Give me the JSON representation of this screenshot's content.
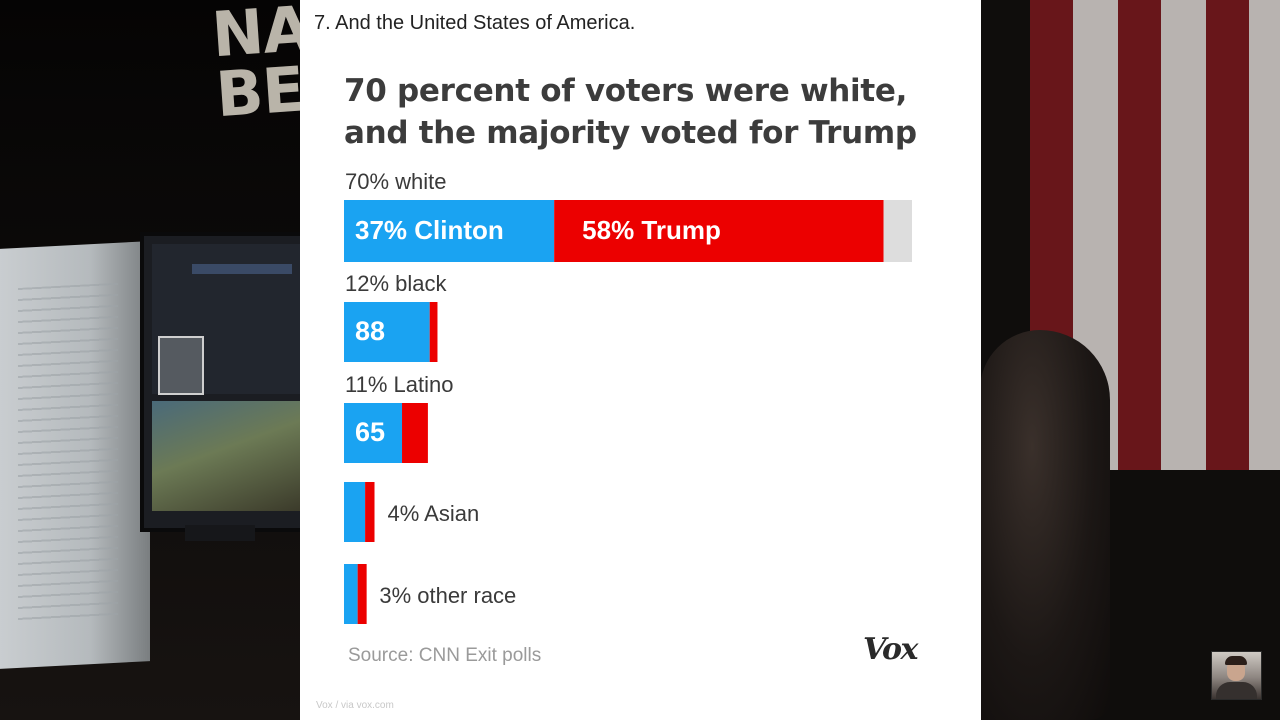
{
  "slide": {
    "caption": "7. And the United States of America.",
    "source": "Source: CNN Exit polls",
    "logo": "Vox",
    "footer_url": "Vox / via vox.com"
  },
  "background": {
    "banner_text": "NA\nBE"
  },
  "colors": {
    "clinton": "#1aa3f2",
    "trump": "#ec0000",
    "other": "#dddddd",
    "group_label": "#3a3a3a",
    "bar_text": "#ffffff"
  },
  "chart_data": {
    "type": "bar",
    "orientation": "horizontal",
    "stacked": true,
    "title": "70 percent of voters were white, and the majority voted for Trump",
    "groups": [
      {
        "label": "70% white",
        "share_of_voters": 70,
        "clinton": 37,
        "trump": 58,
        "other": 5,
        "clinton_label": "37% Clinton",
        "trump_label": "58% Trump",
        "label_position": "above"
      },
      {
        "label": "12% black",
        "share_of_voters": 12,
        "clinton": 88,
        "trump": 8,
        "clinton_label": "88",
        "label_position": "above"
      },
      {
        "label": "11% Latino",
        "share_of_voters": 11,
        "clinton": 65,
        "trump": 29,
        "clinton_label": "65",
        "label_position": "above"
      },
      {
        "label": "4% Asian",
        "share_of_voters": 4,
        "clinton": 65,
        "trump": 29,
        "label_position": "right"
      },
      {
        "label": "3% other race",
        "share_of_voters": 3,
        "clinton": 56,
        "trump": 37,
        "label_position": "right"
      }
    ],
    "legend": "none",
    "grid": false
  }
}
